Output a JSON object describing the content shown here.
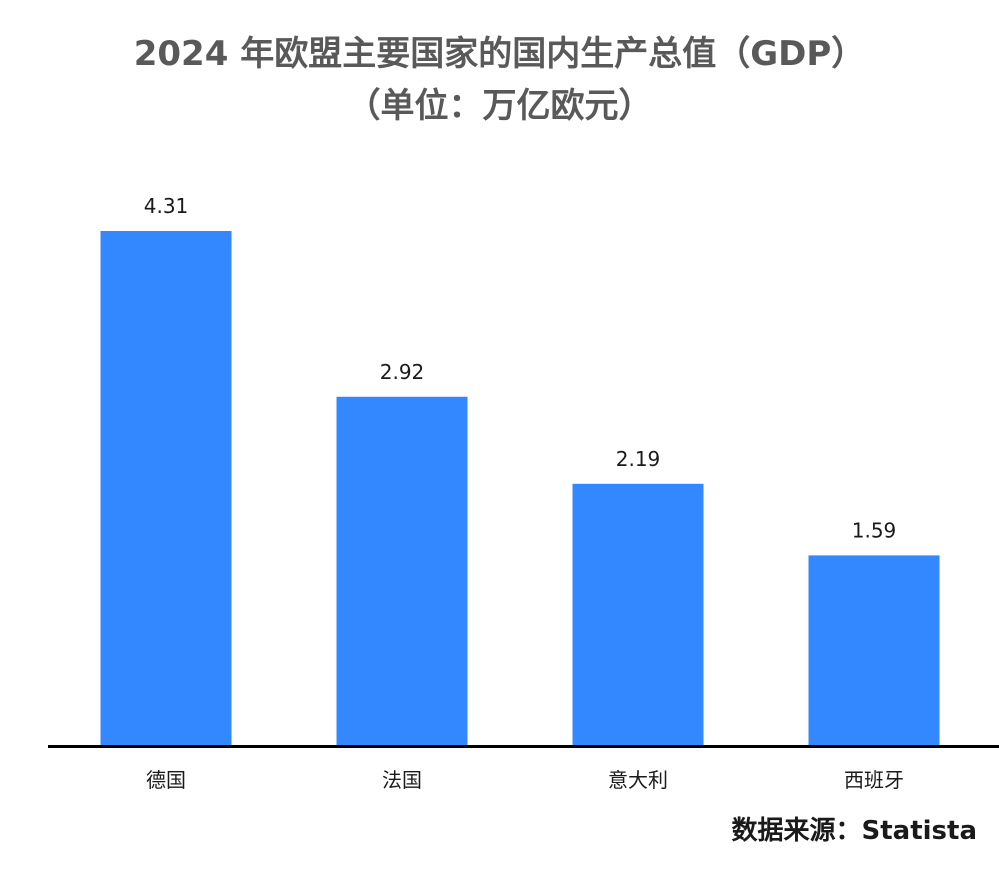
{
  "chart_data": {
    "type": "bar",
    "title_line1": "2024 年欧盟主要国家的国内生产总值（GDP）",
    "title_line2": "（单位：万亿欧元）",
    "categories": [
      "德国",
      "法国",
      "意大利",
      "西班牙"
    ],
    "values": [
      4.31,
      2.92,
      2.19,
      1.59
    ],
    "value_labels": [
      "4.31",
      "2.92",
      "2.19",
      "1.59"
    ],
    "ylim": [
      0,
      4.31
    ],
    "grid": false,
    "legend": "none",
    "bar_color": "#3388FF",
    "axis_color": "#000000"
  },
  "source": "数据来源：Statista"
}
